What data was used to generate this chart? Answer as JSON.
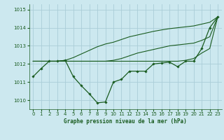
{
  "bg_color": "#cce8ef",
  "grid_color": "#aacdd8",
  "line_color": "#1a5c20",
  "title": "Graphe pression niveau de la mer (hPa)",
  "xlim": [
    -0.5,
    23.5
  ],
  "ylim": [
    1009.5,
    1015.3
  ],
  "yticks": [
    1010,
    1011,
    1012,
    1013,
    1014,
    1015
  ],
  "xticks": [
    0,
    1,
    2,
    3,
    4,
    5,
    6,
    7,
    8,
    9,
    10,
    11,
    12,
    13,
    14,
    15,
    16,
    17,
    18,
    19,
    20,
    21,
    22,
    23
  ],
  "series_main": [
    1011.3,
    1011.75,
    1012.15,
    1012.15,
    1012.2,
    1011.3,
    1010.8,
    1010.35,
    1009.85,
    1009.9,
    1011.0,
    1011.15,
    1011.6,
    1011.6,
    1011.6,
    1012.0,
    1012.05,
    1012.1,
    1011.85,
    1012.15,
    1012.15,
    1012.85,
    1014.0,
    1014.6
  ],
  "series_flat_a": [
    1012.15,
    1012.15,
    1012.15,
    1012.15,
    1012.15,
    1012.15,
    1012.15,
    1012.15,
    1012.15,
    1012.15,
    1012.15,
    1012.15,
    1012.15,
    1012.15,
    1012.15,
    1012.15,
    1012.15,
    1012.15,
    1012.15,
    1012.2,
    1012.3,
    1012.6,
    1012.85,
    1014.6
  ],
  "series_flat_b": [
    1012.15,
    1012.15,
    1012.15,
    1012.15,
    1012.15,
    1012.15,
    1012.15,
    1012.15,
    1012.15,
    1012.15,
    1012.2,
    1012.3,
    1012.45,
    1012.6,
    1012.7,
    1012.8,
    1012.9,
    1013.0,
    1013.05,
    1013.1,
    1013.15,
    1013.3,
    1013.5,
    1014.6
  ],
  "series_flat_c": [
    1012.15,
    1012.15,
    1012.15,
    1012.15,
    1012.2,
    1012.35,
    1012.55,
    1012.75,
    1012.95,
    1013.1,
    1013.2,
    1013.35,
    1013.5,
    1013.6,
    1013.7,
    1013.8,
    1013.88,
    1013.95,
    1014.0,
    1014.05,
    1014.1,
    1014.2,
    1014.3,
    1014.6
  ]
}
